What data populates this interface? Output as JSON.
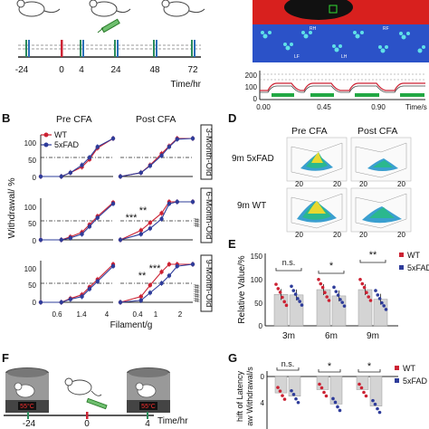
{
  "panel_a": {
    "time_labels": [
      "-24",
      "0",
      "4",
      "24",
      "48",
      "72"
    ],
    "axis_label": "Time/hr",
    "trace_ticks": [
      "200",
      "100",
      "0"
    ],
    "trace_xticks": [
      "0.00",
      "0.45",
      "0.90"
    ],
    "trace_unit": "Time/s",
    "paw_labels": [
      "RH",
      "LF",
      "RF",
      "LH"
    ]
  },
  "panel_b": {
    "letter": "B",
    "pre_label": "Pre CFA",
    "post_label": "Post CFA",
    "ylabel": "Withdrawal/ %",
    "xlabel": "Filament/g",
    "legend": [
      "WT",
      "5xFAD"
    ],
    "rows": [
      {
        "age": "3-Month-Old",
        "sig": [],
        "side": ""
      },
      {
        "age": "6-Month-Old",
        "sig": [
          "***",
          "**"
        ],
        "side": "##"
      },
      {
        "age": "9-Month-Old",
        "sig": [
          "**",
          "***"
        ],
        "side": "####"
      }
    ],
    "yticks": [
      "100",
      "50",
      "0"
    ],
    "xticks_pre": [
      "0.6",
      "1.4",
      "4"
    ],
    "xticks_post": [
      "0.4",
      "1",
      "2"
    ]
  },
  "panel_d": {
    "letter": "D",
    "pre_label": "Pre CFA",
    "post_label": "Post CFA",
    "rows": [
      "9m 5xFAD",
      "9m WT"
    ],
    "axis_num": "20"
  },
  "panel_e": {
    "letter": "E",
    "ylabel": "Relative Value/%",
    "legend": [
      "WT",
      "5xFAD"
    ],
    "groups": [
      "3m",
      "6m",
      "9m"
    ],
    "sig": [
      "n.s.",
      "*",
      "**"
    ],
    "yticks": [
      "150",
      "100",
      "50",
      "0"
    ]
  },
  "panel_f": {
    "letter": "F",
    "time_labels": [
      "-24",
      "0",
      "4"
    ],
    "axis_label": "Time/hr",
    "display": "55°C"
  },
  "panel_g": {
    "letter": "G",
    "ylabel_lines": [
      "hift of Latency",
      "aw Withdrawal/s"
    ],
    "sig": [
      "n.s.",
      "*",
      "*"
    ],
    "legend": [
      "WT",
      "5xFAD"
    ],
    "yticks": [
      "0",
      "4"
    ]
  },
  "colors": {
    "wt": "#cc2233",
    "fad": "#2e3c9a"
  },
  "chart_data": [
    {
      "type": "line",
      "title": "3-Month-Old Pre CFA",
      "x": [
        0.16,
        0.4,
        0.6,
        1.0,
        1.4,
        2.0,
        4.0
      ],
      "series": [
        {
          "name": "WT",
          "values": [
            0,
            0,
            10,
            25,
            45,
            75,
            100
          ]
        },
        {
          "name": "5xFAD",
          "values": [
            0,
            0,
            10,
            30,
            50,
            78,
            100
          ]
        }
      ],
      "xlabel": "Filament/g",
      "ylabel": "Withdrawal/ %",
      "ylim": [
        0,
        100
      ]
    },
    {
      "type": "line",
      "title": "3-Month-Old Post CFA",
      "x": [
        0.16,
        0.4,
        0.6,
        1.0,
        1.4,
        2.0,
        4.0
      ],
      "series": [
        {
          "name": "WT",
          "values": [
            0,
            10,
            30,
            60,
            80,
            100,
            100
          ]
        },
        {
          "name": "5xFAD",
          "values": [
            0,
            10,
            28,
            55,
            78,
            98,
            100
          ]
        }
      ],
      "xlabel": "Filament/g",
      "ylabel": "Withdrawal/ %",
      "ylim": [
        0,
        100
      ]
    },
    {
      "type": "line",
      "title": "6-Month-Old Pre CFA",
      "x": [
        0.16,
        0.4,
        0.6,
        1.0,
        1.4,
        2.0,
        4.0
      ],
      "series": [
        {
          "name": "WT",
          "values": [
            0,
            0,
            8,
            20,
            40,
            62,
            98
          ]
        },
        {
          "name": "5xFAD",
          "values": [
            0,
            0,
            5,
            15,
            35,
            58,
            95
          ]
        }
      ],
      "xlabel": "Filament/g",
      "ylabel": "Withdrawal/ %",
      "ylim": [
        0,
        100
      ]
    },
    {
      "type": "line",
      "title": "6-Month-Old Post CFA",
      "x": [
        0.16,
        0.4,
        0.6,
        1.0,
        1.4,
        2.0,
        4.0
      ],
      "series": [
        {
          "name": "WT",
          "values": [
            0,
            25,
            45,
            70,
            100,
            100,
            100
          ]
        },
        {
          "name": "5xFAD",
          "values": [
            0,
            15,
            30,
            55,
            95,
            100,
            100
          ]
        }
      ],
      "xlabel": "Filament/g",
      "ylabel": "Withdrawal/ %",
      "ylim": [
        0,
        100
      ]
    },
    {
      "type": "line",
      "title": "9-Month-Old Pre CFA",
      "x": [
        0.16,
        0.4,
        0.6,
        1.0,
        1.4,
        2.0,
        4.0
      ],
      "series": [
        {
          "name": "WT",
          "values": [
            0,
            0,
            10,
            20,
            40,
            60,
            100
          ]
        },
        {
          "name": "5xFAD",
          "values": [
            0,
            0,
            8,
            15,
            35,
            55,
            95
          ]
        }
      ],
      "xlabel": "Filament/g",
      "ylabel": "Withdrawal/ %",
      "ylim": [
        0,
        100
      ]
    },
    {
      "type": "line",
      "title": "9-Month-Old Post CFA",
      "x": [
        0.16,
        0.4,
        0.6,
        1.0,
        1.4,
        2.0,
        4.0
      ],
      "series": [
        {
          "name": "WT",
          "values": [
            0,
            15,
            45,
            80,
            100,
            100,
            100
          ]
        },
        {
          "name": "5xFAD",
          "values": [
            0,
            5,
            25,
            50,
            70,
            95,
            100
          ]
        }
      ],
      "xlabel": "Filament/g",
      "ylabel": "Withdrawal/ %",
      "ylim": [
        0,
        100
      ]
    },
    {
      "type": "bar",
      "categories": [
        "3m",
        "6m",
        "9m"
      ],
      "series": [
        {
          "name": "WT",
          "values": [
            65,
            75,
            75
          ]
        },
        {
          "name": "5xFAD",
          "values": [
            64,
            62,
            55
          ]
        }
      ],
      "ylabel": "Relative Value/%",
      "ylim": [
        0,
        150
      ]
    },
    {
      "type": "bar",
      "categories": [
        "3m",
        "6m",
        "9m"
      ],
      "series": [
        {
          "name": "WT",
          "values": [
            -2.5,
            -2.0,
            -2.0
          ]
        },
        {
          "name": "5xFAD",
          "values": [
            -3.0,
            -4.2,
            -4.5
          ]
        }
      ]
    }
  ]
}
